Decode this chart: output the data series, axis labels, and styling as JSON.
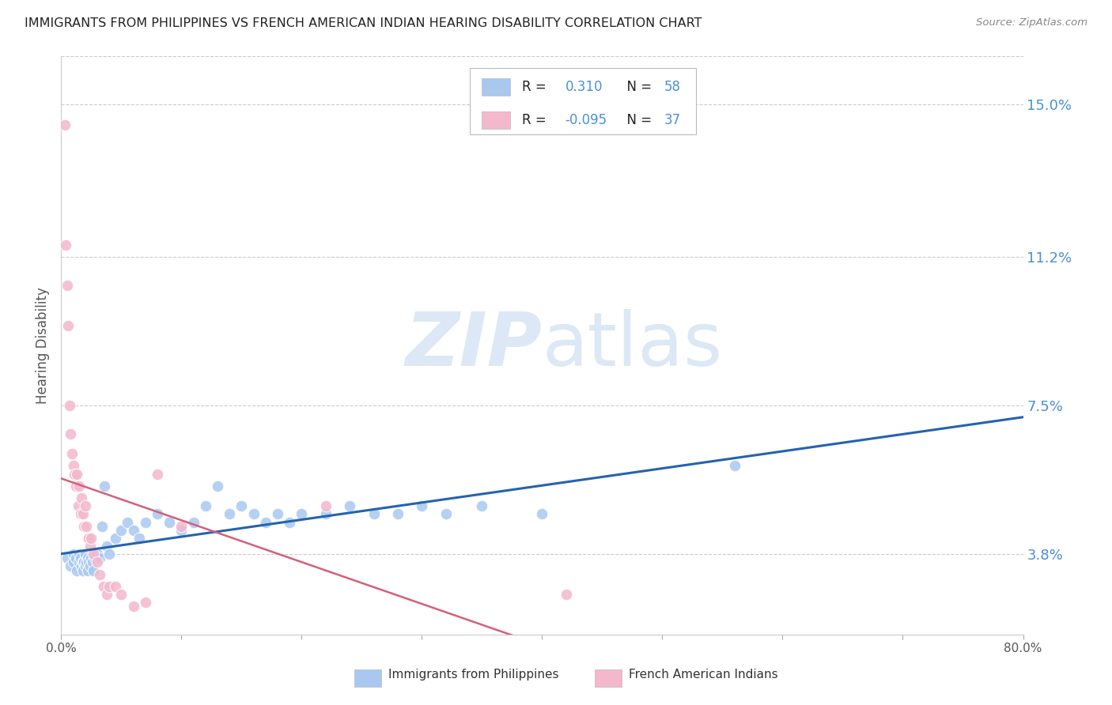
{
  "title": "IMMIGRANTS FROM PHILIPPINES VS FRENCH AMERICAN INDIAN HEARING DISABILITY CORRELATION CHART",
  "source": "Source: ZipAtlas.com",
  "ylabel": "Hearing Disability",
  "y_ticks": [
    0.038,
    0.075,
    0.112,
    0.15
  ],
  "y_tick_labels": [
    "3.8%",
    "7.5%",
    "11.2%",
    "15.0%"
  ],
  "xlim": [
    0.0,
    0.8
  ],
  "ylim": [
    0.018,
    0.162
  ],
  "blue_color": "#a8c8f0",
  "pink_color": "#f4b8cc",
  "blue_line_color": "#2563b0",
  "pink_line_color": "#d4607a",
  "title_color": "#222222",
  "right_axis_color": "#4a90d9",
  "watermark_color": "#dce8f5",
  "background_color": "#ffffff",
  "grid_color": "#cccccc",
  "blue_scatter_x": [
    0.005,
    0.008,
    0.01,
    0.01,
    0.012,
    0.013,
    0.015,
    0.015,
    0.016,
    0.017,
    0.018,
    0.018,
    0.019,
    0.02,
    0.02,
    0.021,
    0.022,
    0.022,
    0.023,
    0.024,
    0.025,
    0.026,
    0.027,
    0.028,
    0.03,
    0.032,
    0.034,
    0.036,
    0.038,
    0.04,
    0.045,
    0.05,
    0.055,
    0.06,
    0.065,
    0.07,
    0.08,
    0.09,
    0.1,
    0.11,
    0.12,
    0.13,
    0.14,
    0.15,
    0.16,
    0.17,
    0.18,
    0.19,
    0.2,
    0.22,
    0.24,
    0.26,
    0.28,
    0.3,
    0.32,
    0.35,
    0.4,
    0.56
  ],
  "blue_scatter_y": [
    0.037,
    0.035,
    0.038,
    0.036,
    0.037,
    0.034,
    0.038,
    0.036,
    0.037,
    0.035,
    0.036,
    0.034,
    0.036,
    0.038,
    0.035,
    0.036,
    0.037,
    0.034,
    0.036,
    0.035,
    0.037,
    0.036,
    0.034,
    0.037,
    0.038,
    0.037,
    0.045,
    0.055,
    0.04,
    0.038,
    0.042,
    0.044,
    0.046,
    0.044,
    0.042,
    0.046,
    0.048,
    0.046,
    0.044,
    0.046,
    0.05,
    0.055,
    0.048,
    0.05,
    0.048,
    0.046,
    0.048,
    0.046,
    0.048,
    0.048,
    0.05,
    0.048,
    0.048,
    0.05,
    0.048,
    0.05,
    0.048,
    0.06
  ],
  "pink_scatter_x": [
    0.003,
    0.004,
    0.005,
    0.006,
    0.007,
    0.008,
    0.009,
    0.01,
    0.011,
    0.012,
    0.013,
    0.014,
    0.015,
    0.016,
    0.017,
    0.018,
    0.019,
    0.02,
    0.021,
    0.022,
    0.023,
    0.024,
    0.025,
    0.027,
    0.03,
    0.032,
    0.035,
    0.038,
    0.04,
    0.045,
    0.05,
    0.06,
    0.07,
    0.08,
    0.1,
    0.22,
    0.42
  ],
  "pink_scatter_y": [
    0.145,
    0.115,
    0.105,
    0.095,
    0.075,
    0.068,
    0.063,
    0.06,
    0.058,
    0.055,
    0.058,
    0.05,
    0.055,
    0.048,
    0.052,
    0.048,
    0.045,
    0.05,
    0.045,
    0.042,
    0.042,
    0.04,
    0.042,
    0.038,
    0.036,
    0.033,
    0.03,
    0.028,
    0.03,
    0.03,
    0.028,
    0.025,
    0.026,
    0.058,
    0.045,
    0.05,
    0.028
  ],
  "blue_trend_x_start": 0.0,
  "blue_trend_x_end": 0.8,
  "pink_trend_x_start": 0.0,
  "pink_trend_x_end": 0.8
}
